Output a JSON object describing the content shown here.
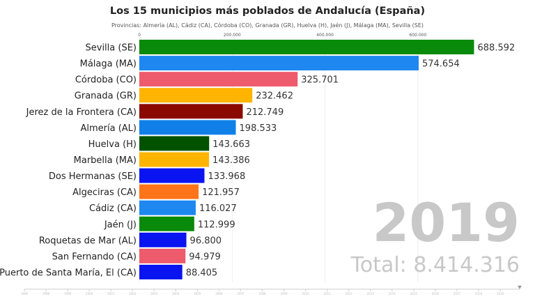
{
  "chart_data": {
    "type": "bar",
    "orientation": "horizontal",
    "title": "Los 15 municipios más poblados de Andalucía (España)",
    "subtitle": "Provincias: Almería (AL), Cádiz (CA), Córdoba (CO), Granada (GR), Huelva (H), Jaén (J), Málaga (MA), Sevilla (SE)",
    "x_ticks": [
      0,
      200000,
      400000,
      600000
    ],
    "x_tick_labels": [
      "0",
      "200.000",
      "400.000",
      "600.000"
    ],
    "grid": true,
    "categories": [
      "Sevilla (SE)",
      "Málaga (MA)",
      "Córdoba (CO)",
      "Granada (GR)",
      "Jerez de la Frontera (CA)",
      "Almería (AL)",
      "Huelva (H)",
      "Marbella (MA)",
      "Dos Hermanas (SE)",
      "Algeciras (CA)",
      "Cádiz (CA)",
      "Jaén (J)",
      "Roquetas de Mar (AL)",
      "San Fernando (CA)",
      "Puerto de Santa María, El (CA)"
    ],
    "values": [
      688592,
      574654,
      325701,
      232462,
      212749,
      198533,
      143663,
      143386,
      133968,
      121957,
      116027,
      112999,
      96800,
      94979,
      88405
    ],
    "value_labels": [
      "688.592",
      "574.654",
      "325.701",
      "232.462",
      "212.749",
      "198.533",
      "143.663",
      "143.386",
      "133.968",
      "121.957",
      "116.027",
      "112.999",
      "96.800",
      "94.979",
      "88.405"
    ],
    "colors": [
      "#0a8a0a",
      "#1e88f0",
      "#ee5b6c",
      "#ffb400",
      "#8b0a00",
      "#1080e8",
      "#005200",
      "#ffb400",
      "#0a14f0",
      "#ff7418",
      "#1e88f0",
      "#0a8a0a",
      "#0a14f0",
      "#ee5b6c",
      "#0a14f0"
    ],
    "year": "2019",
    "total_label": "Total: 8.414.316",
    "timeline_years": [
      "1996",
      "1998",
      "1999",
      "2000",
      "2001",
      "2002",
      "2003",
      "2004",
      "2005",
      "2006",
      "2007",
      "2008",
      "2009",
      "2010",
      "2011",
      "2012",
      "2013",
      "2014",
      "2015",
      "2016",
      "2017",
      "2018",
      "2019"
    ],
    "timeline_position": "2019"
  }
}
